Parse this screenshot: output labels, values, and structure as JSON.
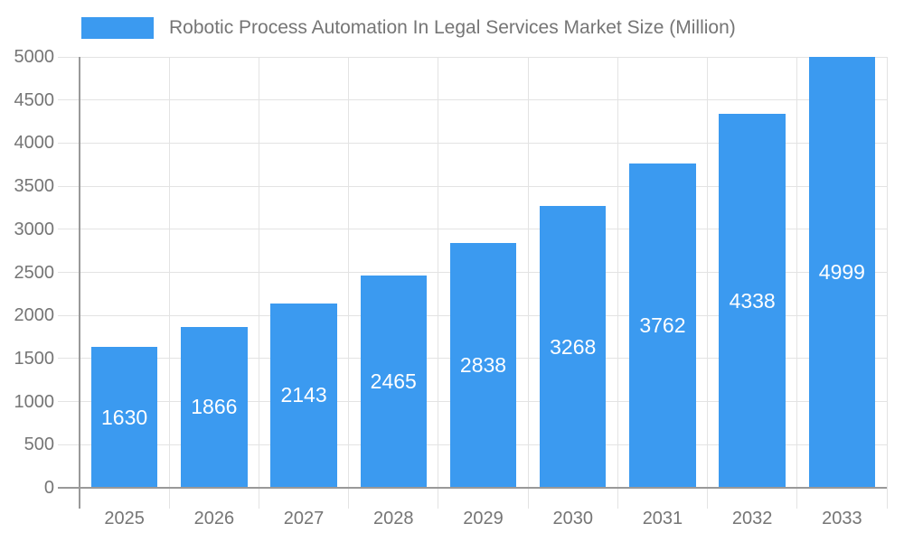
{
  "chart_data": {
    "type": "bar",
    "title": "Robotic Process Automation In Legal Services Market Size (Million)",
    "categories": [
      "2025",
      "2026",
      "2027",
      "2028",
      "2029",
      "2030",
      "2031",
      "2032",
      "2033"
    ],
    "values": [
      1630,
      1866,
      2143,
      2465,
      2838,
      3268,
      3762,
      4338,
      4999
    ],
    "xlabel": "",
    "ylabel": "",
    "ylim": [
      0,
      5000
    ],
    "y_tick_step": 500,
    "y_ticks": [
      "0",
      "500",
      "1000",
      "1500",
      "2000",
      "2500",
      "3000",
      "3500",
      "4000",
      "4500",
      "5000"
    ],
    "grid": true,
    "legend_position": "top-center",
    "bar_labels_position": "inside-center",
    "colors": {
      "bar": "#3B9AF0",
      "bar_label": "#FFFFFF",
      "axis_label": "#757575",
      "legend_text": "#757575",
      "gridline": "#E3E3E3",
      "axis_line": "#999999",
      "background": "#FFFFFF"
    }
  }
}
